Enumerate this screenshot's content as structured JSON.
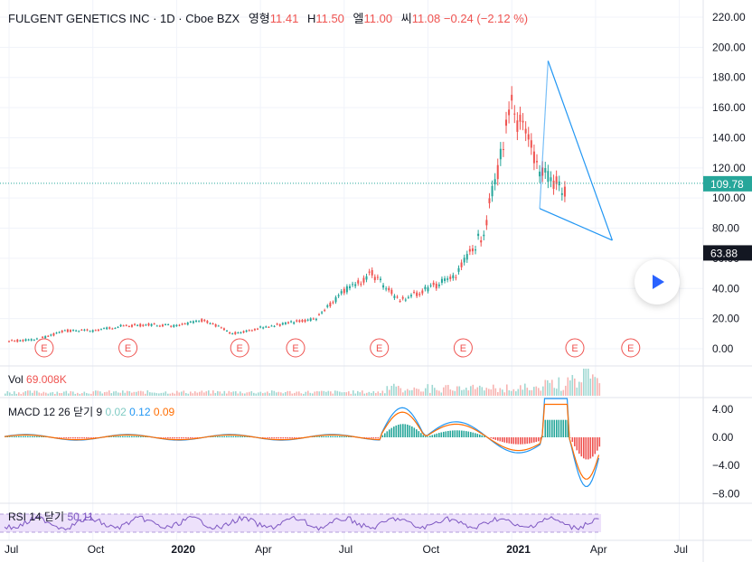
{
  "header": {
    "symbol": "FULGENT GENETICS INC · 1D · Cboe BZX",
    "open_label": "영형",
    "open": "11.41",
    "high_label": "H",
    "high": "11.50",
    "low_label": "엘",
    "low": "11.00",
    "close_label": "씨",
    "close": "11.08",
    "change": "−0.24 (−2.12 %)"
  },
  "volume": {
    "label": "Vol",
    "value": "69.008K"
  },
  "macd": {
    "label": "MACD 12 26 닫기 9",
    "hist": "0.02",
    "macd": "0.12",
    "signal": "0.09"
  },
  "rsi": {
    "label": "RSI 14 닫기",
    "value": "50.11"
  },
  "colors": {
    "up": "#26a69a",
    "down": "#ef5350",
    "macd_line": "#2196f3",
    "signal_line": "#ff6d00",
    "rsi_line": "#7e57c2",
    "rsi_band": "#ede1fb",
    "trendline": "#2196f3"
  },
  "price_axis": {
    "ticks": [
      "220.00",
      "200.00",
      "180.00",
      "160.00",
      "140.00",
      "120.00",
      "100.00",
      "80.00",
      "60.00",
      "40.00",
      "20.00",
      "0.00"
    ],
    "last_price_label": "109.78",
    "marker_label": "63.88"
  },
  "macd_axis": {
    "ticks": [
      "4.00",
      "0.00",
      "−4.00",
      "−8.00"
    ]
  },
  "time_axis": {
    "ticks": [
      "Jul",
      "Oct",
      "2020",
      "Apr",
      "Jul",
      "Oct",
      "2021",
      "Apr",
      "Jul"
    ]
  },
  "earnings_marker": "E",
  "chart_data": {
    "type": "line",
    "title": "FULGENT GENETICS INC · 1D · Cboe BZX",
    "x": [
      "2019-07",
      "2019-08",
      "2019-09",
      "2019-10",
      "2019-11",
      "2019-12",
      "2020-01",
      "2020-02",
      "2020-03",
      "2020-04",
      "2020-05",
      "2020-06",
      "2020-07",
      "2020-08",
      "2020-09",
      "2020-10",
      "2020-11",
      "2020-12",
      "2021-01",
      "2021-02",
      "2021-03"
    ],
    "series": [
      {
        "values": [
          5,
          6,
          12,
          12,
          15,
          16,
          15,
          19,
          10,
          14,
          17,
          20,
          38,
          50,
          32,
          40,
          48,
          78,
          160,
          120,
          102
        ]
      }
    ],
    "ylim": [
      0,
      220
    ],
    "last_price": 109.78,
    "earnings_dates": [
      "2019-08",
      "2019-11",
      "2020-03",
      "2020-05",
      "2020-08",
      "2020-11",
      "2021-03",
      "2021-05"
    ]
  }
}
